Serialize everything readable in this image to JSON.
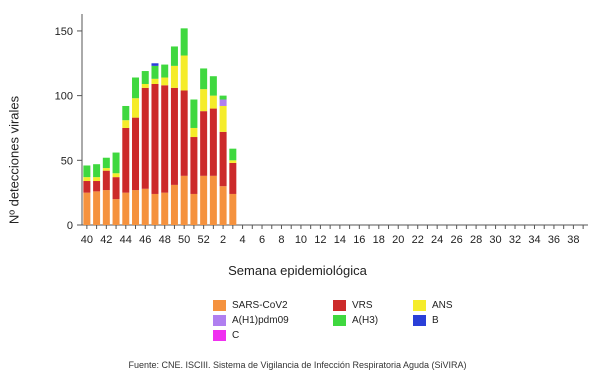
{
  "chart_data": {
    "type": "bar",
    "stacked": true,
    "title": "",
    "xlabel": "Semana epidemiológica",
    "ylabel": "Nº detecciones virales",
    "ylim": [
      0,
      160
    ],
    "yticks": [
      0,
      50,
      100,
      150
    ],
    "categories": [
      "40",
      "41",
      "42",
      "43",
      "44",
      "45",
      "46",
      "47",
      "48",
      "49",
      "50",
      "51",
      "52",
      "1",
      "2",
      "3",
      "4",
      "5",
      "6",
      "7",
      "8",
      "9",
      "10",
      "11",
      "12",
      "13",
      "14",
      "15",
      "16",
      "17",
      "18",
      "19",
      "20",
      "21",
      "22",
      "23",
      "24",
      "25",
      "26",
      "27",
      "28",
      "29",
      "30",
      "31",
      "32",
      "33",
      "34",
      "35",
      "36",
      "37",
      "38",
      "39"
    ],
    "xtick_labels": [
      "40",
      "42",
      "44",
      "46",
      "48",
      "50",
      "52",
      "2",
      "4",
      "6",
      "8",
      "10",
      "12",
      "14",
      "16",
      "18",
      "20",
      "22",
      "24",
      "26",
      "28",
      "30",
      "32",
      "34",
      "36",
      "38"
    ],
    "series": [
      {
        "name": "SARS-CoV2",
        "color": "#f5923e",
        "values": [
          25,
          26,
          27,
          20,
          25,
          27,
          28,
          24,
          25,
          31,
          38,
          24,
          38,
          38,
          30,
          24,
          0,
          0,
          0,
          0,
          0,
          0,
          0,
          0,
          0,
          0,
          0,
          0,
          0,
          0,
          0,
          0,
          0,
          0,
          0,
          0,
          0,
          0,
          0,
          0,
          0,
          0,
          0,
          0,
          0,
          0,
          0,
          0,
          0,
          0,
          0,
          0
        ]
      },
      {
        "name": "VRS",
        "color": "#cc2a2a",
        "values": [
          9,
          8,
          15,
          17,
          50,
          56,
          78,
          85,
          83,
          75,
          66,
          44,
          50,
          52,
          42,
          24,
          0,
          0,
          0,
          0,
          0,
          0,
          0,
          0,
          0,
          0,
          0,
          0,
          0,
          0,
          0,
          0,
          0,
          0,
          0,
          0,
          0,
          0,
          0,
          0,
          0,
          0,
          0,
          0,
          0,
          0,
          0,
          0,
          0,
          0,
          0,
          0
        ]
      },
      {
        "name": "ANS",
        "color": "#f5ec2a",
        "values": [
          3,
          3,
          2,
          3,
          6,
          15,
          3,
          4,
          6,
          17,
          27,
          7,
          17,
          10,
          20,
          2,
          0,
          0,
          0,
          0,
          0,
          0,
          0,
          0,
          0,
          0,
          0,
          0,
          0,
          0,
          0,
          0,
          0,
          0,
          0,
          0,
          0,
          0,
          0,
          0,
          0,
          0,
          0,
          0,
          0,
          0,
          0,
          0,
          0,
          0,
          0,
          0
        ]
      },
      {
        "name": "A(H1)pdm09",
        "color": "#b07ff0",
        "values": [
          0,
          0,
          0,
          0,
          0,
          0,
          0,
          0,
          0,
          0,
          0,
          0,
          0,
          0,
          5,
          0,
          0,
          0,
          0,
          0,
          0,
          0,
          0,
          0,
          0,
          0,
          0,
          0,
          0,
          0,
          0,
          0,
          0,
          0,
          0,
          0,
          0,
          0,
          0,
          0,
          0,
          0,
          0,
          0,
          0,
          0,
          0,
          0,
          0,
          0,
          0,
          0
        ]
      },
      {
        "name": "A(H3)",
        "color": "#3fd83f",
        "values": [
          9,
          10,
          8,
          16,
          11,
          16,
          10,
          10,
          10,
          15,
          21,
          22,
          16,
          15,
          3,
          9,
          0,
          0,
          0,
          0,
          0,
          0,
          0,
          0,
          0,
          0,
          0,
          0,
          0,
          0,
          0,
          0,
          0,
          0,
          0,
          0,
          0,
          0,
          0,
          0,
          0,
          0,
          0,
          0,
          0,
          0,
          0,
          0,
          0,
          0,
          0,
          0
        ]
      },
      {
        "name": "B",
        "color": "#2a3fd8",
        "values": [
          0,
          0,
          0,
          0,
          0,
          0,
          0,
          2,
          0,
          0,
          0,
          0,
          0,
          0,
          0,
          0,
          0,
          0,
          0,
          0,
          0,
          0,
          0,
          0,
          0,
          0,
          0,
          0,
          0,
          0,
          0,
          0,
          0,
          0,
          0,
          0,
          0,
          0,
          0,
          0,
          0,
          0,
          0,
          0,
          0,
          0,
          0,
          0,
          0,
          0,
          0,
          0
        ]
      },
      {
        "name": "C",
        "color": "#f030f0",
        "values": [
          0,
          0,
          0,
          0,
          0,
          0,
          0,
          0,
          0,
          0,
          0,
          0,
          0,
          0,
          0,
          0,
          0,
          0,
          0,
          0,
          0,
          0,
          0,
          0,
          0,
          0,
          0,
          0,
          0,
          0,
          0,
          0,
          0,
          0,
          0,
          0,
          0,
          0,
          0,
          0,
          0,
          0,
          0,
          0,
          0,
          0,
          0,
          0,
          0,
          0,
          0,
          0
        ]
      }
    ],
    "legend": [
      [
        "SARS-CoV2",
        "VRS",
        "ANS"
      ],
      [
        "A(H1)pdm09",
        "A(H3)",
        "B"
      ],
      [
        "C"
      ]
    ],
    "legend_position": "bottom",
    "grid": false,
    "source": "Fuente: CNE. ISCIII. Sistema de Vigilancia de Infección Respiratoria Aguda (SiVIRA)"
  }
}
